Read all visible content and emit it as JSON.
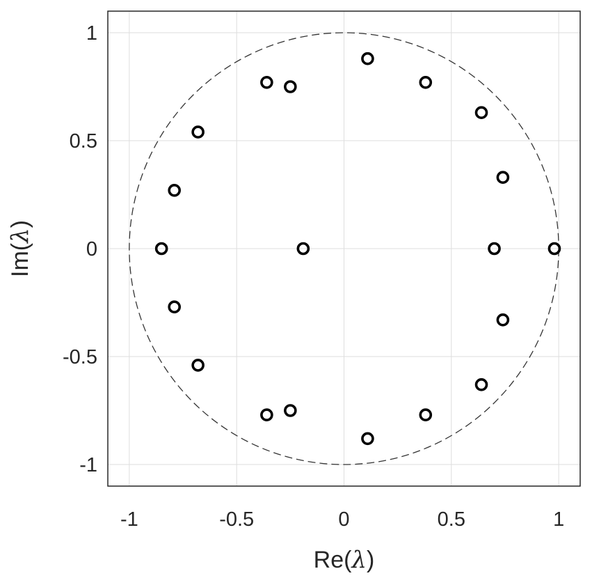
{
  "chart_data": {
    "type": "scatter",
    "xlabel_prefix": "Re(",
    "ylabel_prefix": "Im(",
    "label_symbol": "λ",
    "label_suffix": ")",
    "xlim": [
      -1.1,
      1.1
    ],
    "ylim": [
      -1.1,
      1.1
    ],
    "xticks": [
      -1,
      -0.5,
      0,
      0.5,
      1
    ],
    "yticks": [
      -1,
      -0.5,
      0,
      0.5,
      1
    ],
    "xtick_labels": [
      "-1",
      "-0.5",
      "0",
      "0.5",
      "1"
    ],
    "ytick_labels": [
      "-1",
      "-0.5",
      "0",
      "0.5",
      "1"
    ],
    "grid": true,
    "unit_circle": {
      "radius": 1,
      "style": "dashed"
    },
    "marker": "o",
    "points": [
      {
        "x": 0.11,
        "y": 0.88
      },
      {
        "x": 0.38,
        "y": 0.77
      },
      {
        "x": 0.64,
        "y": 0.63
      },
      {
        "x": 0.74,
        "y": 0.33
      },
      {
        "x": 0.7,
        "y": 0.0
      },
      {
        "x": 0.98,
        "y": 0.0
      },
      {
        "x": 0.74,
        "y": -0.33
      },
      {
        "x": 0.64,
        "y": -0.63
      },
      {
        "x": 0.38,
        "y": -0.77
      },
      {
        "x": 0.11,
        "y": -0.88
      },
      {
        "x": -0.25,
        "y": -0.75
      },
      {
        "x": -0.36,
        "y": -0.77
      },
      {
        "x": -0.68,
        "y": -0.54
      },
      {
        "x": -0.79,
        "y": -0.27
      },
      {
        "x": -0.85,
        "y": 0.0
      },
      {
        "x": -0.19,
        "y": 0.0
      },
      {
        "x": -0.79,
        "y": 0.27
      },
      {
        "x": -0.68,
        "y": 0.54
      },
      {
        "x": -0.36,
        "y": 0.77
      },
      {
        "x": -0.25,
        "y": 0.75
      }
    ],
    "colors": {
      "marker": "#000000",
      "grid": "#dedede",
      "axes": "#262626",
      "circle": "#333333"
    }
  }
}
